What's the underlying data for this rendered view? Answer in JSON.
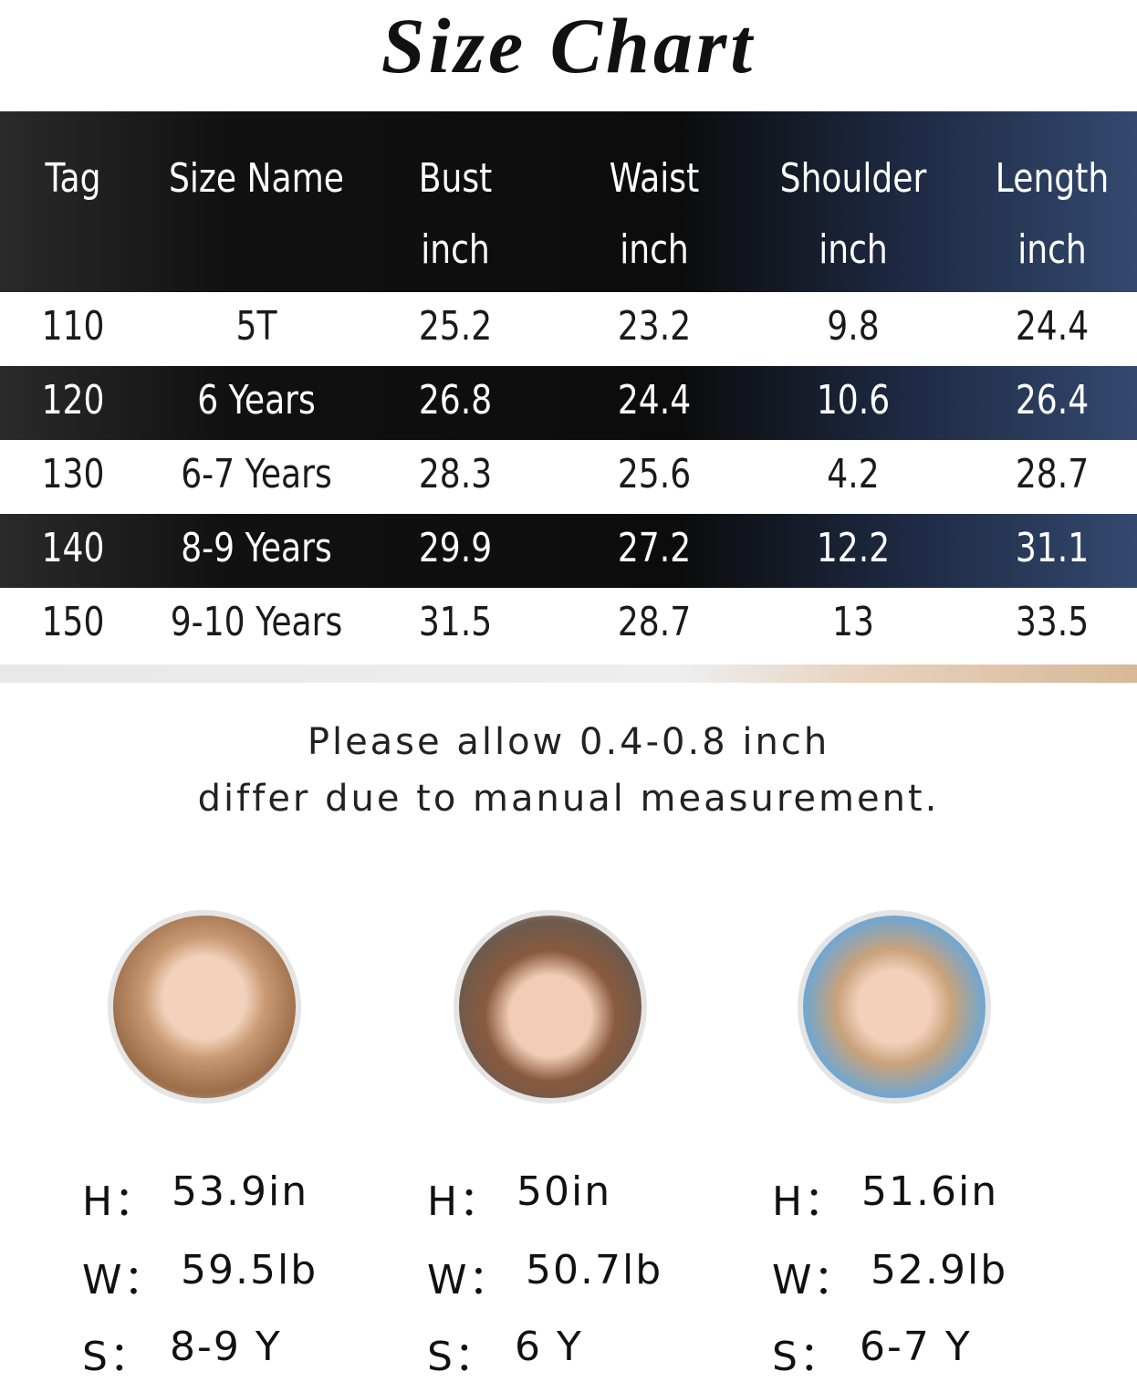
{
  "title": "Size Chart",
  "table": {
    "headers": [
      [
        "Tag"
      ],
      [
        "Size Name"
      ],
      [
        "Bust",
        "inch"
      ],
      [
        "Waist",
        "inch"
      ],
      [
        "Shoulder",
        "inch"
      ],
      [
        "Length",
        "inch"
      ]
    ],
    "rows": [
      [
        "110",
        "5T",
        "25.2",
        "23.2",
        "9.8",
        "24.4"
      ],
      [
        "120",
        "6 Years",
        "26.8",
        "24.4",
        "10.6",
        "26.4"
      ],
      [
        "130",
        "6-7 Years",
        "28.3",
        "25.6",
        "4.2",
        "28.7"
      ],
      [
        "140",
        "8-9 Years",
        "29.9",
        "27.2",
        "12.2",
        "31.1"
      ],
      [
        "150",
        "9-10 Years",
        "31.5",
        "28.7",
        "13",
        "33.5"
      ]
    ]
  },
  "note": [
    "Please allow 0.4-0.8 inch",
    "differ due to manual measurement."
  ],
  "profile_labels": {
    "height": "H：",
    "weight": "W：",
    "size": "S："
  },
  "profiles": [
    {
      "height": "53.9in",
      "weight": "59.5lb",
      "size": "8-9 Y"
    },
    {
      "height": "50in",
      "weight": "50.7lb",
      "size": "6 Y"
    },
    {
      "height": "51.6in",
      "weight": "52.9lb",
      "size": "6-7 Y"
    }
  ]
}
